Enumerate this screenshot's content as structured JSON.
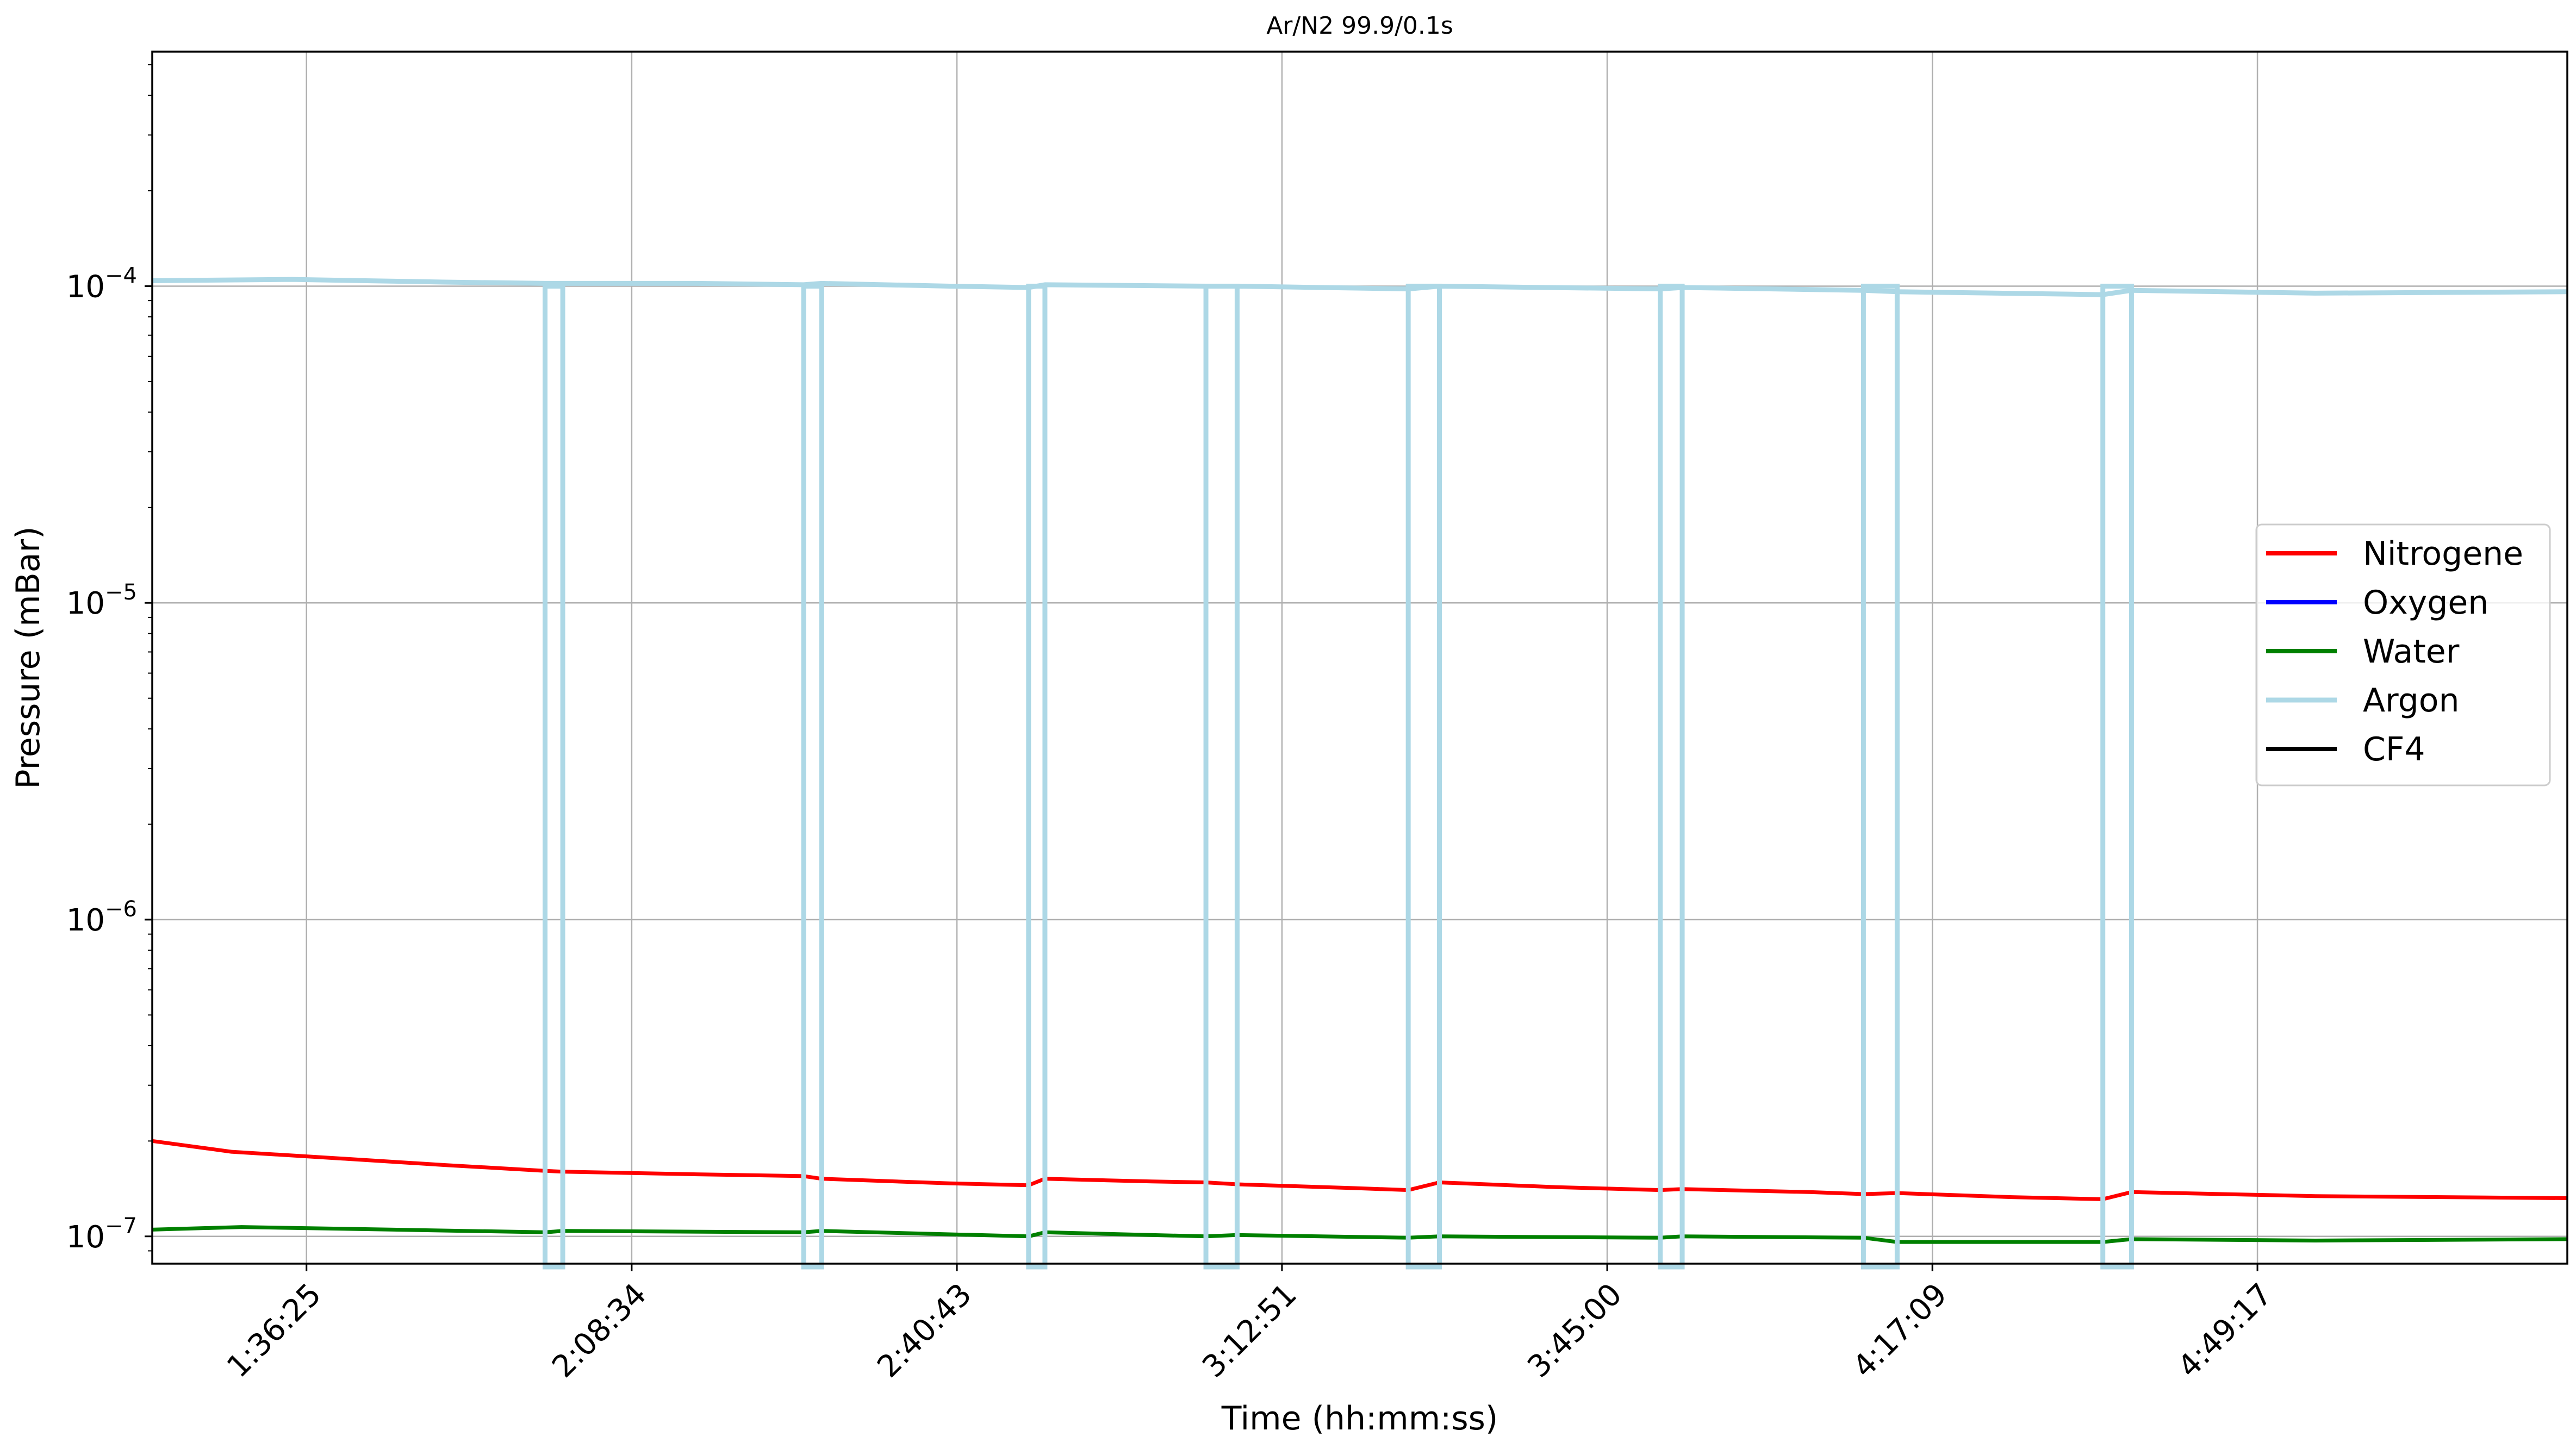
{
  "chart_data": {
    "type": "line",
    "title": "Ar/N2 99.9/0.1s",
    "xlabel": "Time (hh:mm:ss)",
    "ylabel": "Pressure (mBar)",
    "yscale": "log",
    "ylim": [
      8.2e-08,
      0.00055
    ],
    "xlim": [
      "1:21:10",
      "5:19:55"
    ],
    "grid": true,
    "legend_position": "center-right",
    "x_ticks": [
      {
        "value": "1:36:25"
      },
      {
        "value": "2:08:34"
      },
      {
        "value": "2:40:43"
      },
      {
        "value": "3:12:51"
      },
      {
        "value": "3:45:00"
      },
      {
        "value": "4:17:09"
      },
      {
        "value": "4:49:17"
      }
    ],
    "y_ticks": [
      {
        "base": "10",
        "exp": "−7",
        "value": 1e-07
      },
      {
        "base": "10",
        "exp": "−6",
        "value": 1e-06
      },
      {
        "base": "10",
        "exp": "−5",
        "value": 1e-05
      },
      {
        "base": "10",
        "exp": "−4",
        "value": 0.0001
      }
    ],
    "gaps": [
      [
        "2:00:00",
        "2:01:45"
      ],
      [
        "2:25:34",
        "2:27:21"
      ],
      [
        "2:47:48",
        "2:49:25"
      ],
      [
        "3:05:20",
        "3:08:25"
      ],
      [
        "3:25:20",
        "3:28:25"
      ],
      [
        "3:50:15",
        "3:52:25"
      ],
      [
        "4:10:20",
        "4:13:40"
      ],
      [
        "4:34:00",
        "4:36:50"
      ]
    ],
    "series": [
      {
        "name": "Nitrogene",
        "color": "#ff0000",
        "points": [
          [
            "1:21:10",
            2e-07
          ],
          [
            "1:29:00",
            1.85e-07
          ],
          [
            "1:40:00",
            1.76e-07
          ],
          [
            "1:50:00",
            1.68e-07
          ],
          [
            "2:00:00",
            1.61e-07
          ],
          [
            "2:01:45",
            1.6e-07
          ],
          [
            "2:15:00",
            1.57e-07
          ],
          [
            "2:25:34",
            1.55e-07
          ],
          [
            "2:27:21",
            1.52e-07
          ],
          [
            "2:40:00",
            1.47e-07
          ],
          [
            "2:47:48",
            1.45e-07
          ],
          [
            "2:49:25",
            1.52e-07
          ],
          [
            "3:00:00",
            1.49e-07
          ],
          [
            "3:05:20",
            1.48e-07
          ],
          [
            "3:08:25",
            1.46e-07
          ],
          [
            "3:20:00",
            1.42e-07
          ],
          [
            "3:25:20",
            1.4e-07
          ],
          [
            "3:28:25",
            1.48e-07
          ],
          [
            "3:40:00",
            1.43e-07
          ],
          [
            "3:50:15",
            1.4e-07
          ],
          [
            "3:52:25",
            1.41e-07
          ],
          [
            "4:05:00",
            1.38e-07
          ],
          [
            "4:10:20",
            1.36e-07
          ],
          [
            "4:13:40",
            1.37e-07
          ],
          [
            "4:25:00",
            1.33e-07
          ],
          [
            "4:34:00",
            1.31e-07
          ],
          [
            "4:36:50",
            1.38e-07
          ],
          [
            "4:55:00",
            1.34e-07
          ],
          [
            "5:19:55",
            1.32e-07
          ]
        ]
      },
      {
        "name": "Oxygen",
        "color": "#0000ff",
        "points": []
      },
      {
        "name": "Water",
        "color": "#008000",
        "points": [
          [
            "1:21:10",
            1.05e-07
          ],
          [
            "1:30:00",
            1.07e-07
          ],
          [
            "1:45:00",
            1.05e-07
          ],
          [
            "2:00:00",
            1.03e-07
          ],
          [
            "2:01:45",
            1.04e-07
          ],
          [
            "2:25:34",
            1.03e-07
          ],
          [
            "2:27:21",
            1.04e-07
          ],
          [
            "2:47:48",
            1e-07
          ],
          [
            "2:49:25",
            1.03e-07
          ],
          [
            "3:05:20",
            1e-07
          ],
          [
            "3:08:25",
            1.01e-07
          ],
          [
            "3:25:20",
            9.9e-08
          ],
          [
            "3:28:25",
            1e-07
          ],
          [
            "3:50:15",
            9.9e-08
          ],
          [
            "3:52:25",
            1e-07
          ],
          [
            "4:10:20",
            9.9e-08
          ],
          [
            "4:13:40",
            9.6e-08
          ],
          [
            "4:34:00",
            9.6e-08
          ],
          [
            "4:36:50",
            9.8e-08
          ],
          [
            "4:55:00",
            9.7e-08
          ],
          [
            "5:19:55",
            9.8e-08
          ]
        ]
      },
      {
        "name": "Argon",
        "color": "#add8e6",
        "points": [
          [
            "1:21:10",
            0.000104
          ],
          [
            "1:35:00",
            0.000105
          ],
          [
            "1:50:00",
            0.000103
          ],
          [
            "2:00:00",
            0.000102
          ],
          [
            "2:01:45",
            0.000102
          ],
          [
            "2:15:00",
            0.000102
          ],
          [
            "2:25:34",
            0.000101
          ],
          [
            "2:27:21",
            0.000102
          ],
          [
            "2:40:00",
            0.0001
          ],
          [
            "2:47:48",
            9.9e-05
          ],
          [
            "2:49:25",
            0.000101
          ],
          [
            "3:05:20",
            0.0001
          ],
          [
            "3:08:25",
            0.0001
          ],
          [
            "3:25:20",
            9.8e-05
          ],
          [
            "3:28:25",
            0.0001
          ],
          [
            "3:50:15",
            9.8e-05
          ],
          [
            "3:52:25",
            9.9e-05
          ],
          [
            "4:10:20",
            9.7e-05
          ],
          [
            "4:13:40",
            9.6e-05
          ],
          [
            "4:34:00",
            9.4e-05
          ],
          [
            "4:36:50",
            9.7e-05
          ],
          [
            "4:55:00",
            9.5e-05
          ],
          [
            "5:19:55",
            9.6e-05
          ]
        ]
      },
      {
        "name": "CF4",
        "color": "#000000",
        "points": []
      }
    ]
  }
}
